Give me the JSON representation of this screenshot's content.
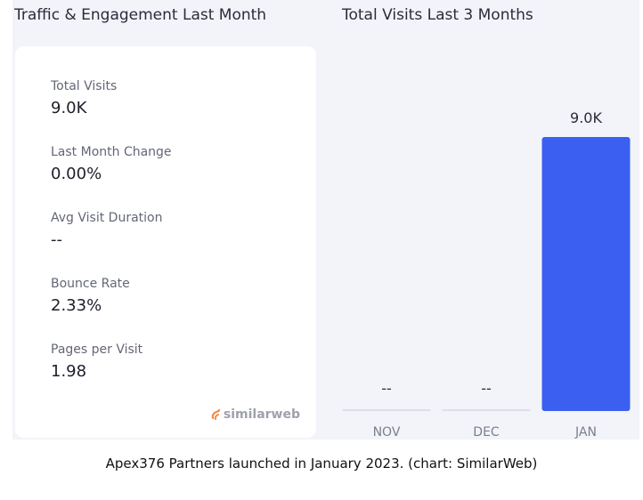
{
  "headings": {
    "left": "Traffic & Engagement Last Month",
    "right": "Total Visits Last 3 Months"
  },
  "stats": [
    {
      "label": "Total Visits",
      "value": "9.0K"
    },
    {
      "label": "Last Month Change",
      "value": "0.00%"
    },
    {
      "label": "Avg Visit Duration",
      "value": "--"
    },
    {
      "label": "Bounce Rate",
      "value": "2.33%"
    },
    {
      "label": "Pages per Visit",
      "value": "1.98"
    }
  ],
  "brand": {
    "name": "similarweb",
    "icon": "similarweb-logo-icon"
  },
  "colors": {
    "bar": "#3b5ff0",
    "placeholder": "#dde0ea",
    "panel": "#f2f4f9"
  },
  "chart_data": {
    "type": "bar",
    "categories": [
      "NOV",
      "DEC",
      "JAN"
    ],
    "values": [
      null,
      null,
      9000
    ],
    "labels": [
      "--",
      "--",
      "9.0K"
    ],
    "title": "Total Visits Last 3 Months",
    "ylim": [
      0,
      9000
    ]
  },
  "caption": "Apex376 Partners launched in January 2023. (chart: SimilarWeb)"
}
